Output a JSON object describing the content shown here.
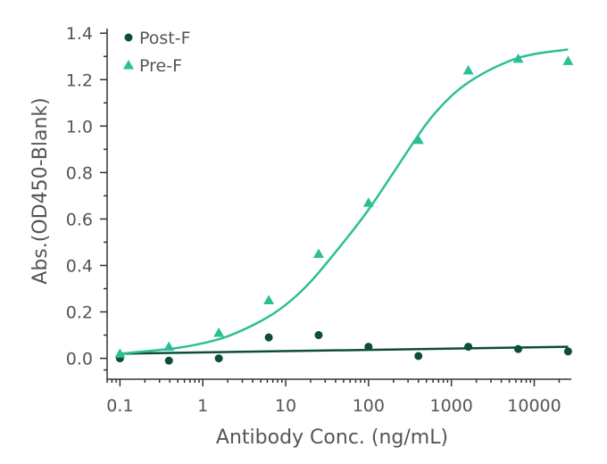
{
  "chart_data": {
    "type": "scatter",
    "xlabel": "Antibody Conc. (ng/mL)",
    "ylabel": "Abs.(OD450-Blank)",
    "x_scale": "log",
    "xlim": [
      0.07,
      28000
    ],
    "ylim": [
      -0.09,
      1.42
    ],
    "x_ticks": [
      0.1,
      1,
      10,
      100,
      1000,
      10000
    ],
    "x_tick_labels": [
      "0.1",
      "1",
      "10",
      "100",
      "1000",
      "10000"
    ],
    "y_ticks": [
      0.0,
      0.2,
      0.4,
      0.6,
      0.8,
      1.0,
      1.2,
      1.4
    ],
    "y_tick_labels": [
      "0.0",
      "0.2",
      "0.4",
      "0.6",
      "0.8",
      "1.0",
      "1.2",
      "1.4"
    ],
    "grid": false,
    "legend_position": "top-left",
    "series": [
      {
        "name": "Post-F",
        "marker": "circle",
        "color": "#0d4d3a",
        "x": [
          0.1,
          0.39,
          1.56,
          6.25,
          25,
          100,
          400,
          1600,
          6400,
          25600
        ],
        "y": [
          0.0,
          -0.01,
          0.0,
          0.09,
          0.1,
          0.05,
          0.01,
          0.05,
          0.04,
          0.03
        ],
        "fit": [
          [
            0.1,
            0.02
          ],
          [
            25600,
            0.05
          ]
        ]
      },
      {
        "name": "Pre-F",
        "marker": "triangle",
        "color": "#2bbf95",
        "x": [
          0.1,
          0.39,
          1.56,
          6.25,
          25,
          100,
          400,
          1600,
          6400,
          25600
        ],
        "y": [
          0.02,
          0.05,
          0.11,
          0.25,
          0.45,
          0.67,
          0.94,
          1.24,
          1.29,
          1.28
        ],
        "fit": [
          [
            0.1,
            0.02
          ],
          [
            0.2,
            0.03
          ],
          [
            0.5,
            0.045
          ],
          [
            1,
            0.065
          ],
          [
            2,
            0.095
          ],
          [
            5,
            0.16
          ],
          [
            10,
            0.23
          ],
          [
            20,
            0.33
          ],
          [
            50,
            0.5
          ],
          [
            100,
            0.64
          ],
          [
            200,
            0.8
          ],
          [
            500,
            1.01
          ],
          [
            1000,
            1.13
          ],
          [
            2000,
            1.21
          ],
          [
            5000,
            1.28
          ],
          [
            10000,
            1.31
          ],
          [
            25600,
            1.33
          ]
        ]
      }
    ]
  }
}
